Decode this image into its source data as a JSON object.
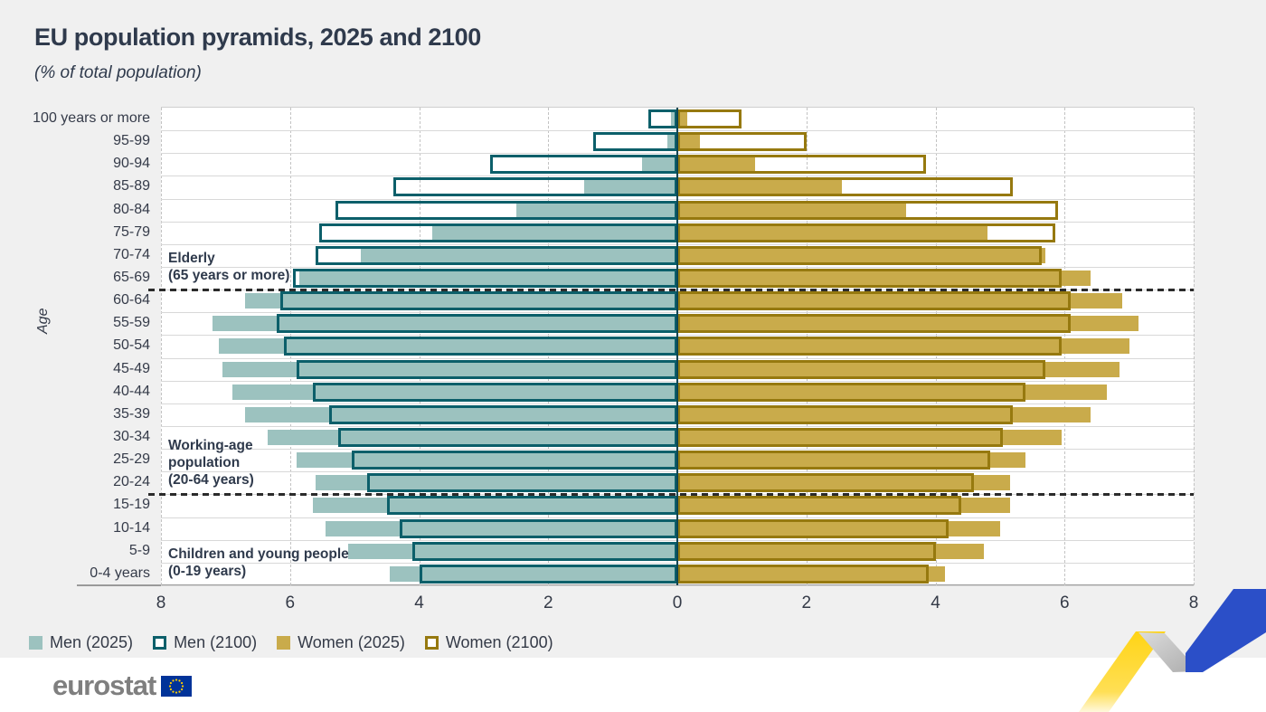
{
  "header": {
    "title": "EU population pyramids, 2025 and 2100",
    "subtitle": "(% of total population)"
  },
  "chart_data": {
    "type": "bar",
    "variant": "population-pyramid",
    "title": "EU population pyramids, 2025 and 2100",
    "subtitle": "(% of total population)",
    "ylabel": "Age",
    "xlim": 8,
    "x_ticks": [
      "8",
      "6",
      "4",
      "2",
      "0",
      "2",
      "4",
      "6",
      "8"
    ],
    "grid": "dashed-vertical",
    "categories": [
      "100 years or more",
      "95-99",
      "90-94",
      "85-89",
      "80-84",
      "75-79",
      "70-74",
      "65-69",
      "60-64",
      "55-59",
      "50-54",
      "45-49",
      "40-44",
      "35-39",
      "30-34",
      "25-29",
      "20-24",
      "15-19",
      "10-14",
      "5-9",
      "0-4 years"
    ],
    "series": [
      {
        "name": "Men (2025)",
        "side": "left",
        "style": "fill",
        "color": "#9CC2BF",
        "values": [
          0.1,
          0.15,
          0.55,
          1.45,
          2.5,
          3.8,
          4.9,
          5.85,
          6.7,
          7.2,
          7.1,
          7.05,
          6.9,
          6.7,
          6.35,
          5.9,
          5.6,
          5.65,
          5.45,
          5.1,
          4.45
        ]
      },
      {
        "name": "Men (2100)",
        "side": "left",
        "style": "outline",
        "color": "#0C5F6A",
        "values": [
          0.45,
          1.3,
          2.9,
          4.4,
          5.3,
          5.55,
          5.6,
          5.95,
          6.15,
          6.2,
          6.1,
          5.9,
          5.65,
          5.4,
          5.25,
          5.05,
          4.8,
          4.5,
          4.3,
          4.1,
          4.0
        ]
      },
      {
        "name": "Women (2025)",
        "side": "right",
        "style": "fill",
        "color": "#C9AB4B",
        "values": [
          0.15,
          0.35,
          1.2,
          2.55,
          3.55,
          4.8,
          5.7,
          6.4,
          6.9,
          7.15,
          7.0,
          6.85,
          6.65,
          6.4,
          5.95,
          5.4,
          5.15,
          5.15,
          5.0,
          4.75,
          4.15
        ]
      },
      {
        "name": "Women (2100)",
        "side": "right",
        "style": "outline",
        "color": "#96790F",
        "values": [
          1.0,
          2.0,
          3.85,
          5.2,
          5.9,
          5.85,
          5.65,
          5.95,
          6.1,
          6.1,
          5.95,
          5.7,
          5.4,
          5.2,
          5.05,
          4.85,
          4.6,
          4.4,
          4.2,
          4.0,
          3.9
        ]
      }
    ],
    "separator_rows": [
      8,
      17
    ],
    "annotations": [
      {
        "lines": [
          "Elderly",
          "(65 years or more)"
        ],
        "anchor_row": 8
      },
      {
        "lines": [
          "Working-age",
          "population",
          "(20-64 years)"
        ],
        "anchor_row": 17
      },
      {
        "lines": [
          "Children and young people",
          "(0-19 years)"
        ],
        "anchor_row": 21
      }
    ],
    "legend_position": "bottom-left"
  },
  "legend": {
    "items": [
      {
        "label": "Men (2025)",
        "style": "fill",
        "color": "#9CC2BF"
      },
      {
        "label": "Men (2100)",
        "style": "outline",
        "color": "#0C5F6A"
      },
      {
        "label": "Women (2025)",
        "style": "fill",
        "color": "#C9AB4B"
      },
      {
        "label": "Women (2100)",
        "style": "outline",
        "color": "#96790F"
      }
    ]
  },
  "footer": {
    "brand": "eurostat"
  },
  "style": {
    "background": "#F0F0F0",
    "plot_background": "#FFFFFF",
    "center_axis_color": "#0D4653",
    "text_color": "#2F3A4C",
    "eu_flag_blue": "#003399",
    "eu_flag_stars": "#FFCC00",
    "ribbon_yellow": "#FFD415",
    "ribbon_gray": "#BFBFBF",
    "ribbon_blue": "#2B4FC8"
  }
}
